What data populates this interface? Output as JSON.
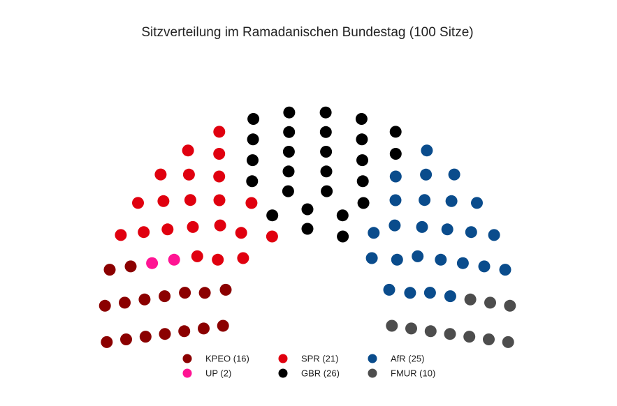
{
  "chart_data": {
    "type": "parliament",
    "title": "Sitzverteilung im Ramadanischen Bundestag (100 Sitze)",
    "total_seats": 100,
    "legend_position": "bottom",
    "series": [
      {
        "name": "KPEO",
        "label": "KPEO (16)",
        "values": [
          16
        ],
        "color": "#8b0000"
      },
      {
        "name": "UP",
        "label": "UP (2)",
        "values": [
          2
        ],
        "color": "#ff1493"
      },
      {
        "name": "SPR",
        "label": "SPR (21)",
        "values": [
          21
        ],
        "color": "#e0000f"
      },
      {
        "name": "GBR",
        "label": "GBR (26)",
        "values": [
          26
        ],
        "color": "#000000"
      },
      {
        "name": "AfR",
        "label": "AfR (25)",
        "values": [
          25
        ],
        "color": "#0a4c8c"
      },
      {
        "name": "FMUR",
        "label": "FMUR (10)",
        "values": [
          10
        ],
        "color": "#4d4d4d"
      }
    ]
  }
}
